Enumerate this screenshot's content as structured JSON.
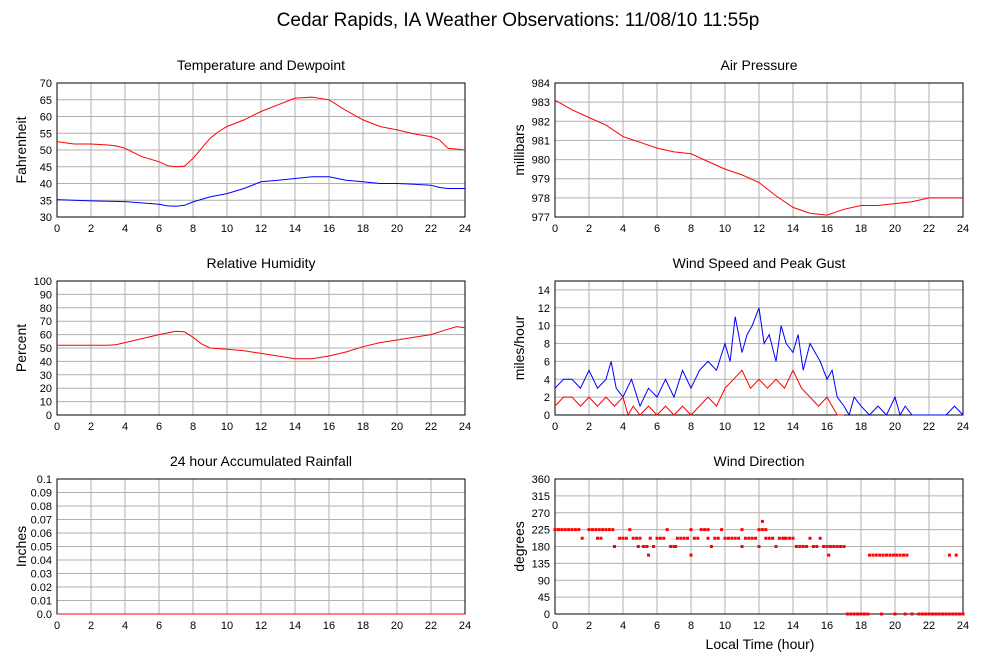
{
  "page_title": "Cedar Rapids, IA Weather Observations: 11/08/10 11:55p",
  "x_axis_label": "Local Time (hour)",
  "colors": {
    "red": "#ff0000",
    "blue": "#0000ff",
    "grid": "#b0b0b0"
  },
  "chart_data": [
    {
      "id": "temp",
      "type": "line",
      "title": "Temperature and Dewpoint",
      "ylabel": "Fahrenheit",
      "xlim": [
        0,
        24
      ],
      "ylim": [
        30,
        70
      ],
      "xticks": [
        0,
        2,
        4,
        6,
        8,
        10,
        12,
        14,
        16,
        18,
        20,
        22,
        24
      ],
      "yticks": [
        30,
        35,
        40,
        45,
        50,
        55,
        60,
        65,
        70
      ],
      "grid": true,
      "series": [
        {
          "color": "#ff0000",
          "x": [
            0,
            1,
            2,
            3,
            3.5,
            4,
            5,
            6,
            6.5,
            7,
            7.5,
            8,
            8.5,
            9,
            9.5,
            10,
            11,
            12,
            13,
            14,
            15,
            16,
            17,
            18,
            19,
            20,
            21,
            22,
            22.5,
            23,
            24
          ],
          "y": [
            52.5,
            51.8,
            51.8,
            51.5,
            51.2,
            50.5,
            48,
            46.5,
            45.3,
            45,
            45.2,
            47.5,
            50.5,
            53.5,
            55.5,
            57,
            59,
            61.5,
            63.5,
            65.5,
            65.8,
            65,
            61.8,
            59,
            57,
            56,
            54.8,
            54,
            53,
            50.5,
            50
          ]
        },
        {
          "color": "#0000ff",
          "x": [
            0,
            2,
            4,
            6,
            6.5,
            7,
            7.5,
            8,
            9,
            10,
            11,
            12,
            13,
            14,
            15,
            16,
            17,
            18,
            19,
            20,
            21,
            22,
            22.5,
            23,
            24
          ],
          "y": [
            35.2,
            34.8,
            34.6,
            33.8,
            33.3,
            33.2,
            33.5,
            34.5,
            36,
            37,
            38.5,
            40.5,
            41,
            41.5,
            42,
            42,
            41,
            40.5,
            40,
            40,
            39.8,
            39.5,
            38.8,
            38.5,
            38.5
          ]
        }
      ]
    },
    {
      "id": "pressure",
      "type": "line",
      "title": "Air Pressure",
      "ylabel": "millibars",
      "xlim": [
        0,
        24
      ],
      "ylim": [
        977,
        984
      ],
      "xticks": [
        0,
        2,
        4,
        6,
        8,
        10,
        12,
        14,
        16,
        18,
        20,
        22,
        24
      ],
      "yticks": [
        977,
        978,
        979,
        980,
        981,
        982,
        983,
        984
      ],
      "grid": true,
      "series": [
        {
          "color": "#ff0000",
          "x": [
            0,
            1,
            2,
            3,
            4,
            5,
            6,
            7,
            8,
            9,
            10,
            11,
            12,
            13,
            14,
            15,
            16,
            17,
            18,
            19,
            20,
            21,
            22,
            23,
            24
          ],
          "y": [
            983.1,
            982.6,
            982.2,
            981.8,
            981.2,
            980.9,
            980.6,
            980.4,
            980.3,
            979.9,
            979.5,
            979.2,
            978.8,
            978.1,
            977.5,
            977.2,
            977.1,
            977.4,
            977.6,
            977.6,
            977.7,
            977.8,
            978,
            978,
            978
          ]
        }
      ]
    },
    {
      "id": "humidity",
      "type": "line",
      "title": "Relative Humidity",
      "ylabel": "Percent",
      "xlim": [
        0,
        24
      ],
      "ylim": [
        0,
        100
      ],
      "xticks": [
        0,
        2,
        4,
        6,
        8,
        10,
        12,
        14,
        16,
        18,
        20,
        22,
        24
      ],
      "yticks": [
        0,
        10,
        20,
        30,
        40,
        50,
        60,
        70,
        80,
        90,
        100
      ],
      "grid": true,
      "series": [
        {
          "color": "#ff0000",
          "x": [
            0,
            1,
            2,
            3,
            3.5,
            4,
            5,
            6,
            7,
            7.5,
            8,
            8.5,
            9,
            10,
            11,
            12,
            13,
            14,
            15,
            16,
            17,
            18,
            19,
            20,
            21,
            22,
            23,
            23.5,
            24
          ],
          "y": [
            52,
            52,
            52,
            52,
            52.5,
            54,
            57,
            60,
            62.5,
            62,
            58,
            53,
            50,
            49,
            48,
            46,
            44,
            42,
            42,
            44,
            47,
            51,
            54,
            56,
            58,
            60,
            64,
            66,
            65
          ]
        }
      ]
    },
    {
      "id": "wind",
      "type": "line",
      "title": "Wind Speed and Peak Gust",
      "ylabel": "miles/hour",
      "xlim": [
        0,
        24
      ],
      "ylim": [
        0,
        15
      ],
      "xticks": [
        0,
        2,
        4,
        6,
        8,
        10,
        12,
        14,
        16,
        18,
        20,
        22,
        24
      ],
      "yticks": [
        0,
        2,
        4,
        6,
        8,
        10,
        12,
        14
      ],
      "grid": true,
      "series": [
        {
          "color": "#0000ff",
          "x": [
            0,
            0.5,
            1,
            1.5,
            2,
            2.5,
            3,
            3.3,
            3.6,
            4,
            4.5,
            5,
            5.5,
            6,
            6.5,
            7,
            7.5,
            8,
            8.5,
            9,
            9.5,
            10,
            10.3,
            10.6,
            11,
            11.3,
            11.6,
            12,
            12.3,
            12.6,
            13,
            13.3,
            13.6,
            14,
            14.3,
            14.6,
            15,
            15.3,
            15.6,
            16,
            16.3,
            16.6,
            17,
            17.3,
            17.6,
            18,
            18.5,
            19,
            19.5,
            20,
            20.3,
            20.6,
            21,
            21.5,
            22,
            22.5,
            23,
            23.5,
            24
          ],
          "y": [
            3,
            4,
            4,
            3,
            5,
            3,
            4,
            6,
            3,
            2,
            4,
            1,
            3,
            2,
            4,
            2,
            5,
            3,
            5,
            6,
            5,
            8,
            6,
            11,
            7,
            9,
            10,
            12,
            8,
            9,
            6,
            10,
            8,
            7,
            9,
            5,
            8,
            7,
            6,
            4,
            5,
            2,
            1,
            0,
            2,
            1,
            0,
            1,
            0,
            2,
            0,
            1,
            0,
            0,
            0,
            0,
            0,
            1,
            0
          ]
        },
        {
          "color": "#ff0000",
          "x": [
            0,
            0.5,
            1,
            1.5,
            2,
            2.5,
            3,
            3.5,
            4,
            4.3,
            4.6,
            5,
            5.5,
            6,
            6.5,
            7,
            7.5,
            8,
            8.5,
            9,
            9.5,
            10,
            10.5,
            11,
            11.5,
            12,
            12.5,
            13,
            13.5,
            14,
            14.5,
            15,
            15.5,
            16,
            16.3,
            16.6,
            17
          ],
          "y": [
            1,
            2,
            2,
            1,
            2,
            1,
            2,
            1,
            2,
            0,
            1,
            0,
            1,
            0,
            1,
            0,
            1,
            0,
            1,
            2,
            1,
            3,
            4,
            5,
            3,
            4,
            3,
            4,
            3,
            5,
            3,
            2,
            1,
            2,
            1,
            0,
            0
          ]
        }
      ]
    },
    {
      "id": "rain",
      "type": "line",
      "title": "24 hour Accumulated Rainfall",
      "ylabel": "Inches",
      "xlim": [
        0,
        24
      ],
      "ylim": [
        0,
        0.1
      ],
      "xticks": [
        0,
        2,
        4,
        6,
        8,
        10,
        12,
        14,
        16,
        18,
        20,
        22,
        24
      ],
      "yticks": [
        0.0,
        0.01,
        0.02,
        0.03,
        0.04,
        0.05,
        0.06,
        0.07,
        0.08,
        0.09,
        0.1
      ],
      "ytick_labels": [
        "0.0",
        "0.01",
        "0.02",
        "0.03",
        "0.04",
        "0.05",
        "0.06",
        "0.07",
        "0.08",
        "0.09",
        "0.1"
      ],
      "grid": true,
      "series": [
        {
          "color": "#ff0000",
          "x": [
            0,
            24
          ],
          "y": [
            0,
            0
          ]
        }
      ]
    },
    {
      "id": "direction",
      "type": "scatter",
      "title": "Wind Direction",
      "ylabel": "degrees",
      "xlim": [
        0,
        24
      ],
      "ylim": [
        0,
        360
      ],
      "xticks": [
        0,
        2,
        4,
        6,
        8,
        10,
        12,
        14,
        16,
        18,
        20,
        22,
        24
      ],
      "yticks": [
        0,
        45,
        90,
        135,
        180,
        225,
        270,
        315,
        360
      ],
      "grid": true,
      "series": [
        {
          "color": "#ff0000",
          "x": [
            0,
            0.2,
            0.4,
            0.6,
            0.8,
            1,
            1.2,
            1.4,
            1.6,
            2,
            2.2,
            2.4,
            2.6,
            2.8,
            3,
            3.2,
            3.4,
            2.5,
            2.7,
            3.5,
            3.8,
            4,
            4.2,
            4.4,
            4.6,
            4.8,
            5,
            5.2,
            5.4,
            5.6,
            4.9,
            5.8,
            6,
            6.2,
            6.4,
            6.6,
            6.8,
            7,
            7.2,
            7.4,
            7.6,
            7.8,
            8,
            8.2,
            8.4,
            8.6,
            8.8,
            9,
            9.2,
            9.4,
            9.6,
            9.8,
            10,
            10.2,
            10.4,
            10.6,
            10.8,
            11,
            11.2,
            11.4,
            11.6,
            11.8,
            12,
            12.2,
            12.4,
            12.6,
            12.8,
            13,
            13.2,
            13.4,
            13.6,
            13.8,
            14,
            14.2,
            14.4,
            14.6,
            14.8,
            15,
            15.2,
            15.4,
            15.6,
            15.8,
            16,
            16.2,
            16.4,
            16.6,
            16.8,
            17,
            16.1,
            18.5,
            18.7,
            18.9,
            19.1,
            19.3,
            19.5,
            19.7,
            19.9,
            20.1,
            20.3,
            20.5,
            20.7,
            23.2,
            23.6,
            17.2,
            17.4,
            17.6,
            17.8,
            18,
            18.2,
            18.4,
            19.2,
            20,
            20.6,
            21,
            21.4,
            21.6,
            21.8,
            22,
            22.2,
            22.4,
            22.6,
            22.8,
            23,
            23.2,
            23.4,
            23.6,
            23.8,
            24,
            12.2,
            12.4,
            8,
            9,
            11,
            12,
            13.5,
            7.1,
            5.4,
            5.5
          ],
          "y": [
            225,
            225,
            225,
            225,
            225,
            225,
            225,
            225,
            202,
            225,
            225,
            225,
            225,
            225,
            225,
            225,
            225,
            202,
            202,
            180,
            202,
            202,
            202,
            225,
            202,
            202,
            202,
            180,
            180,
            202,
            180,
            180,
            202,
            202,
            202,
            225,
            180,
            180,
            202,
            202,
            202,
            202,
            225,
            202,
            202,
            225,
            225,
            225,
            180,
            202,
            202,
            225,
            202,
            202,
            202,
            202,
            202,
            225,
            202,
            202,
            202,
            202,
            180,
            225,
            202,
            202,
            202,
            180,
            202,
            202,
            202,
            202,
            202,
            180,
            180,
            180,
            180,
            202,
            180,
            180,
            202,
            180,
            180,
            180,
            180,
            180,
            180,
            180,
            157,
            157,
            157,
            157,
            157,
            157,
            157,
            157,
            157,
            157,
            157,
            157,
            157,
            157,
            157,
            0,
            0,
            0,
            0,
            0,
            0,
            0,
            0,
            0,
            0,
            0,
            0,
            0,
            0,
            0,
            0,
            0,
            0,
            0,
            0,
            0,
            0,
            0,
            0,
            0,
            247,
            225,
            157,
            202,
            180,
            225,
            202,
            180,
            180,
            157
          ]
        }
      ]
    }
  ]
}
